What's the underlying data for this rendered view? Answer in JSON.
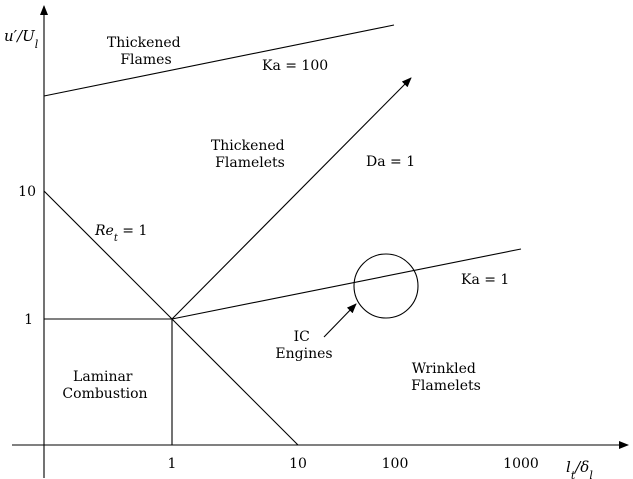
{
  "axes": {
    "x_label": "l_t/δ_l",
    "y_label": "u'/U_l",
    "x_ticks": [
      "1",
      "10",
      "100",
      "1000"
    ],
    "y_ticks": [
      "10",
      "1"
    ],
    "x_scale": "log",
    "y_scale": "log"
  },
  "regions": {
    "thickened_flames": [
      "Thickened",
      "Flames"
    ],
    "thickened_flamelets": [
      "Thickened",
      "Flamelets"
    ],
    "laminar_combustion": [
      "Laminar",
      "Combustion"
    ],
    "wrinkled_flamelets": [
      "Wrinkled",
      "Flamelets"
    ],
    "ic_engines": [
      "IC",
      "Engines"
    ]
  },
  "lines": {
    "ka_100": "Ka = 100",
    "da_1": "Da = 1",
    "ret_1": "Re_t = 1",
    "ka_1": "Ka = 1"
  }
}
